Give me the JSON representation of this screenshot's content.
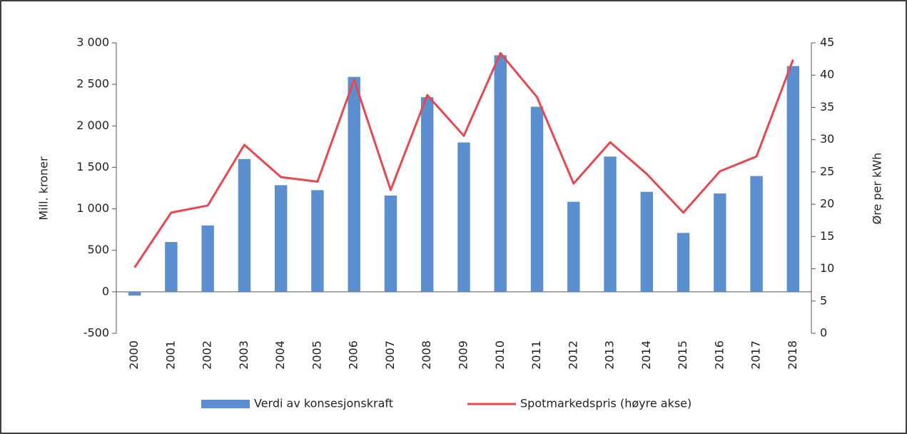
{
  "chart_data": {
    "type": "bar_line",
    "categories": [
      "2000",
      "2001",
      "2002",
      "2003",
      "2004",
      "2005",
      "2006",
      "2007",
      "2008",
      "2009",
      "2010",
      "2011",
      "2012",
      "2013",
      "2014",
      "2015",
      "2016",
      "2017",
      "2018"
    ],
    "series": [
      {
        "name": "Verdi av konsesjonskraft",
        "color": "#5b8fd0",
        "type": "bar",
        "axis": "y",
        "values": [
          -45,
          600,
          800,
          1600,
          1285,
          1225,
          2590,
          1160,
          2345,
          1800,
          2850,
          2230,
          1085,
          1630,
          1205,
          710,
          1185,
          1395,
          2720
        ]
      },
      {
        "name": "Spotmarkedspris (høyre akse)",
        "color": "#e8474f",
        "type": "line",
        "axis": "y2",
        "values": [
          10.2,
          18.7,
          19.8,
          29.2,
          24.2,
          23.5,
          39.3,
          22.2,
          36.9,
          30.6,
          43.4,
          36.6,
          23.2,
          29.6,
          24.7,
          18.7,
          25.1,
          27.4,
          42.4
        ]
      }
    ],
    "ylabel": "Mill. kroner",
    "y2label": "Øre per kWh",
    "ylim": [
      -500,
      3000
    ],
    "yticks": [
      -500,
      0,
      500,
      {
        "value": 1000,
        "label": "1 000"
      },
      {
        "value": 1500,
        "label": "1 500"
      },
      {
        "value": 2000,
        "label": "2 000"
      },
      {
        "value": 2500,
        "label": "2 500"
      },
      {
        "value": 3000,
        "label": "3 000"
      }
    ],
    "y2lim": [
      0,
      45
    ],
    "y2ticks": [
      0,
      5,
      10,
      15,
      20,
      25,
      30,
      35,
      40,
      45
    ],
    "legend": "bottom"
  }
}
